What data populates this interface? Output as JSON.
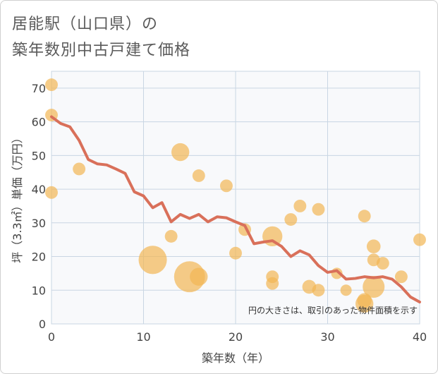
{
  "title_line1": "居能駅（山口県）の",
  "title_line2": "築年数別中古戸建て価格",
  "chart_data": {
    "type": "scatter",
    "title": "居能駅（山口県）の築年数別中古戸建て価格",
    "xlabel": "築年数（年）",
    "ylabel": "坪（3.3㎡）単価（万円）",
    "xlim": [
      0,
      40
    ],
    "ylim": [
      0,
      75
    ],
    "xticks": [
      0,
      10,
      20,
      30,
      40
    ],
    "yticks": [
      0,
      10,
      20,
      30,
      40,
      50,
      60,
      70
    ],
    "grid": true,
    "note": "円の大きさは、取引のあった物件面積を示す",
    "colors": {
      "bubble": "#f2b654",
      "line": "#d9705a",
      "grid": "#c9d6e3",
      "plot_bg": "#f8f9fb"
    },
    "bubbles": [
      {
        "x": 0,
        "y": 71,
        "size": 1
      },
      {
        "x": 0,
        "y": 62,
        "size": 1
      },
      {
        "x": 0,
        "y": 39,
        "size": 1
      },
      {
        "x": 3,
        "y": 46,
        "size": 1
      },
      {
        "x": 11,
        "y": 19,
        "size": 5
      },
      {
        "x": 13,
        "y": 26,
        "size": 1
      },
      {
        "x": 14,
        "y": 51,
        "size": 2
      },
      {
        "x": 15,
        "y": 14,
        "size": 6
      },
      {
        "x": 16,
        "y": 14,
        "size": 2
      },
      {
        "x": 16,
        "y": 44,
        "size": 1
      },
      {
        "x": 19,
        "y": 41,
        "size": 1
      },
      {
        "x": 20,
        "y": 21,
        "size": 1
      },
      {
        "x": 21,
        "y": 28,
        "size": 1
      },
      {
        "x": 24,
        "y": 26,
        "size": 2.5
      },
      {
        "x": 24,
        "y": 14,
        "size": 1
      },
      {
        "x": 24,
        "y": 12,
        "size": 1
      },
      {
        "x": 26,
        "y": 31,
        "size": 1
      },
      {
        "x": 27,
        "y": 35,
        "size": 1
      },
      {
        "x": 28,
        "y": 11,
        "size": 1.2
      },
      {
        "x": 29,
        "y": 34,
        "size": 1
      },
      {
        "x": 29,
        "y": 10,
        "size": 1
      },
      {
        "x": 31,
        "y": 15,
        "size": 0.8
      },
      {
        "x": 32,
        "y": 10,
        "size": 0.8
      },
      {
        "x": 34,
        "y": 32,
        "size": 1
      },
      {
        "x": 34,
        "y": 7,
        "size": 1.3
      },
      {
        "x": 34,
        "y": 6,
        "size": 2
      },
      {
        "x": 35,
        "y": 23,
        "size": 1.2
      },
      {
        "x": 35,
        "y": 19,
        "size": 1
      },
      {
        "x": 35,
        "y": 11,
        "size": 3
      },
      {
        "x": 36,
        "y": 18,
        "size": 1
      },
      {
        "x": 38,
        "y": 14,
        "size": 1
      },
      {
        "x": 40,
        "y": 25,
        "size": 1
      }
    ],
    "trend_line": {
      "x": [
        0,
        1,
        2,
        3,
        4,
        5,
        6,
        7,
        8,
        9,
        10,
        11,
        12,
        13,
        14,
        15,
        16,
        17,
        18,
        19,
        20,
        21,
        22,
        23,
        24,
        25,
        26,
        27,
        28,
        29,
        30,
        31,
        32,
        33,
        34,
        35,
        36,
        37,
        38,
        39,
        40
      ],
      "y": [
        61.5,
        59.5,
        58.5,
        54.5,
        48.8,
        47.5,
        47.2,
        46,
        44.7,
        39.2,
        38,
        34.5,
        36,
        30.3,
        32.5,
        31.3,
        32.5,
        30.3,
        31.8,
        31.5,
        30.3,
        29.2,
        23.8,
        24.3,
        24.7,
        23,
        20,
        21.7,
        20.5,
        17.3,
        15.3,
        15.8,
        13.3,
        13.5,
        14,
        13.7,
        14,
        13.3,
        11,
        8,
        6.5
      ]
    }
  }
}
